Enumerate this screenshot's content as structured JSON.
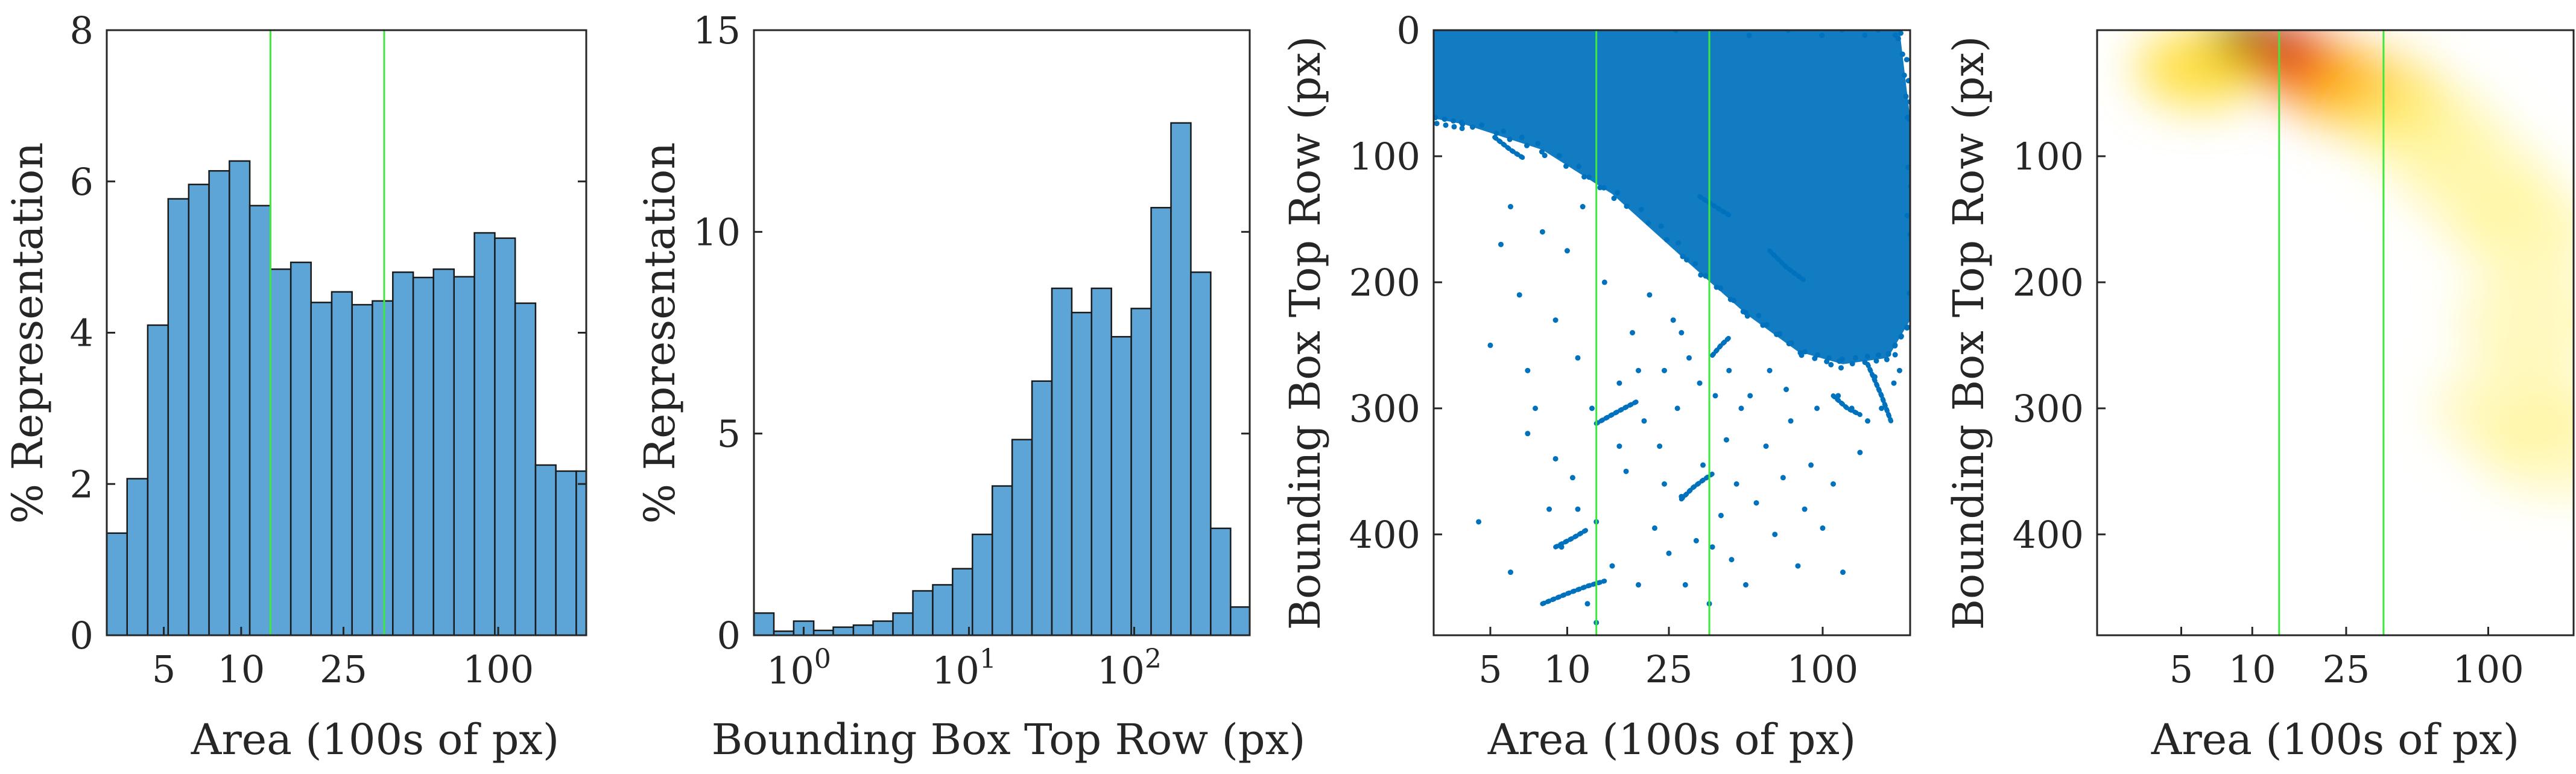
{
  "colors": {
    "bar_fill": "#5da5d7",
    "bar_stroke": "#1a1a1a",
    "scatter": "#0072bd",
    "marker_line": "#3ee83e",
    "axis": "#262626"
  },
  "chart_data": [
    {
      "id": "area-hist",
      "type": "bar",
      "title": "",
      "xlabel": "Area (100s of px)",
      "ylabel": "% Representation",
      "xscale": "log",
      "xlim": [
        3,
        220
      ],
      "ylim": [
        0,
        8
      ],
      "xticks": [
        5,
        10,
        25,
        100
      ],
      "xtick_labels": [
        "5",
        "10",
        "25",
        "100"
      ],
      "yticks": [
        0,
        2,
        4,
        6,
        8
      ],
      "ytick_labels": [
        "0",
        "2",
        "4",
        "6",
        "8"
      ],
      "vlines": [
        13,
        36
      ],
      "bin_edges": [
        3.0,
        3.6,
        4.33,
        5.2,
        6.25,
        7.5,
        9.0,
        10.8,
        13.0,
        15.6,
        18.7,
        22.5,
        27.0,
        32.4,
        38.9,
        46.7,
        56.0,
        67.3,
        80.8,
        97.0,
        116.4,
        139.7,
        167.6,
        201.2,
        220.0
      ],
      "values": [
        1.35,
        2.07,
        4.1,
        5.77,
        5.96,
        6.14,
        6.27,
        5.68,
        4.84,
        4.93,
        4.4,
        4.54,
        4.37,
        4.42,
        4.8,
        4.73,
        4.84,
        4.74,
        5.32,
        5.25,
        4.39,
        2.25,
        2.17,
        2.17
      ]
    },
    {
      "id": "toprow-hist",
      "type": "bar",
      "title": "",
      "xlabel": "Bounding Box Top Row (px)",
      "ylabel": "% Representation",
      "xscale": "log",
      "xlim": [
        0.5,
        500
      ],
      "ylim": [
        0,
        15
      ],
      "xticks": [
        1,
        10,
        100
      ],
      "xtick_labels": [
        "10^0",
        "10^1",
        "10^2"
      ],
      "yticks": [
        0,
        5,
        10,
        15
      ],
      "ytick_labels": [
        "0",
        "5",
        "10",
        "15"
      ],
      "bin_edges": [
        0.5,
        0.66,
        0.87,
        1.15,
        1.51,
        2.0,
        2.63,
        3.47,
        4.58,
        6.04,
        7.96,
        10.5,
        13.85,
        18.26,
        24.08,
        31.76,
        41.9,
        55.2,
        72.8,
        96.0,
        126.6,
        167.0,
        220.3,
        290.5,
        383.2,
        500.0
      ],
      "values": [
        0.55,
        0.1,
        0.35,
        0.12,
        0.2,
        0.25,
        0.35,
        0.55,
        1.1,
        1.25,
        1.65,
        2.5,
        3.7,
        4.85,
        6.3,
        8.6,
        8.0,
        8.6,
        7.4,
        8.1,
        10.6,
        12.7,
        9.0,
        2.65,
        0.7
      ]
    },
    {
      "id": "scatter",
      "type": "scatter",
      "title": "",
      "xlabel": "Area (100s of px)",
      "ylabel": "Bounding Box Top Row (px)",
      "xscale": "log",
      "xlim": [
        3,
        220
      ],
      "ylim": [
        0,
        480
      ],
      "y_reversed": true,
      "xticks": [
        5,
        10,
        25,
        100
      ],
      "xtick_labels": [
        "5",
        "10",
        "25",
        "100"
      ],
      "yticks": [
        0,
        100,
        200,
        300,
        400
      ],
      "ytick_labels": [
        "0",
        "100",
        "200",
        "300",
        "400"
      ],
      "vlines": [
        13,
        36
      ],
      "dense_band": [
        [
          3,
          0
        ],
        [
          200,
          0
        ],
        [
          220,
          70
        ],
        [
          220,
          230
        ],
        [
          180,
          260
        ],
        [
          120,
          265
        ],
        [
          80,
          255
        ],
        [
          50,
          225
        ],
        [
          30,
          185
        ],
        [
          15,
          130
        ],
        [
          8,
          95
        ],
        [
          4,
          75
        ],
        [
          3,
          70
        ]
      ],
      "points": [
        [
          4.5,
          390
        ],
        [
          5,
          250
        ],
        [
          5.5,
          170
        ],
        [
          6,
          140
        ],
        [
          6.5,
          210
        ],
        [
          7,
          320
        ],
        [
          7.5,
          300
        ],
        [
          8,
          160
        ],
        [
          8.5,
          380
        ],
        [
          9,
          230
        ],
        [
          9.5,
          410
        ],
        [
          10,
          175
        ],
        [
          10.5,
          355
        ],
        [
          11,
          260
        ],
        [
          11.5,
          140
        ],
        [
          12,
          455
        ],
        [
          12.5,
          300
        ],
        [
          13,
          390
        ],
        [
          14,
          200
        ],
        [
          15,
          425
        ],
        [
          16,
          280
        ],
        [
          17,
          350
        ],
        [
          18,
          240
        ],
        [
          19,
          440
        ],
        [
          20,
          310
        ],
        [
          21,
          210
        ],
        [
          22,
          395
        ],
        [
          23,
          330
        ],
        [
          24,
          270
        ],
        [
          25,
          415
        ],
        [
          26,
          230
        ],
        [
          27,
          300
        ],
        [
          28,
          370
        ],
        [
          29,
          440
        ],
        [
          30,
          260
        ],
        [
          32,
          405
        ],
        [
          34,
          345
        ],
        [
          36,
          455
        ],
        [
          38,
          290
        ],
        [
          40,
          385
        ],
        [
          42,
          325
        ],
        [
          44,
          420
        ],
        [
          46,
          360
        ],
        [
          48,
          300
        ],
        [
          50,
          440
        ],
        [
          55,
          375
        ],
        [
          60,
          330
        ],
        [
          65,
          400
        ],
        [
          70,
          355
        ],
        [
          75,
          310
        ],
        [
          80,
          425
        ],
        [
          85,
          380
        ],
        [
          90,
          345
        ],
        [
          100,
          395
        ],
        [
          110,
          360
        ],
        [
          120,
          430
        ],
        [
          130,
          300
        ],
        [
          140,
          335
        ],
        [
          150,
          310
        ],
        [
          170,
          300
        ],
        [
          190,
          280
        ],
        [
          200,
          270
        ],
        [
          6,
          430
        ],
        [
          7,
          270
        ],
        [
          9,
          340
        ],
        [
          11,
          380
        ],
        [
          13,
          470
        ],
        [
          16,
          330
        ],
        [
          19,
          270
        ],
        [
          24,
          360
        ],
        [
          28,
          240
        ],
        [
          33,
          280
        ],
        [
          37,
          410
        ],
        [
          43,
          270
        ],
        [
          52,
          290
        ],
        [
          62,
          270
        ],
        [
          72,
          285
        ],
        [
          95,
          300
        ],
        [
          115,
          290
        ],
        [
          160,
          275
        ]
      ],
      "curves": [
        [
          [
            8,
            455
          ],
          [
            10,
            447
          ],
          [
            12,
            441
          ],
          [
            14,
            437
          ]
        ],
        [
          [
            13,
            312
          ],
          [
            15,
            305
          ],
          [
            17,
            299
          ],
          [
            19,
            294
          ]
        ],
        [
          [
            28,
            372
          ],
          [
            31,
            363
          ],
          [
            34,
            357
          ],
          [
            37,
            352
          ]
        ],
        [
          [
            37,
            258
          ],
          [
            40,
            250
          ],
          [
            43,
            244
          ]
        ],
        [
          [
            9,
            410
          ],
          [
            10.5,
            403
          ],
          [
            12,
            396
          ]
        ],
        [
          [
            5.2,
            85
          ],
          [
            6,
            95
          ],
          [
            6.8,
            102
          ]
        ],
        [
          [
            110,
            290
          ],
          [
            125,
            300
          ],
          [
            140,
            305
          ]
        ],
        [
          [
            150,
            265
          ],
          [
            170,
            290
          ],
          [
            185,
            310
          ]
        ],
        [
          [
            33,
            132
          ],
          [
            38,
            140
          ],
          [
            44,
            148
          ]
        ],
        [
          [
            62,
            175
          ],
          [
            72,
            188
          ],
          [
            84,
            198
          ]
        ]
      ]
    },
    {
      "id": "density",
      "type": "heatmap",
      "title": "",
      "xlabel": "Area (100s of px)",
      "ylabel": "Bounding Box Top Row (px)",
      "xscale": "log",
      "xlim": [
        2.2,
        230
      ],
      "ylim": [
        0,
        480
      ],
      "y_reversed": true,
      "xticks": [
        5,
        10,
        25,
        100
      ],
      "xtick_labels": [
        "5",
        "10",
        "25",
        "100"
      ],
      "yticks": [
        100,
        200,
        300,
        400
      ],
      "ytick_labels": [
        "100",
        "200",
        "300",
        "400"
      ],
      "vlines": [
        13,
        36
      ],
      "blobs": [
        {
          "x": 9.5,
          "y": 8,
          "density": 1.0
        },
        {
          "x": 14,
          "y": 20,
          "density": 0.85
        },
        {
          "x": 22,
          "y": 40,
          "density": 0.6
        },
        {
          "x": 35,
          "y": 55,
          "density": 0.4
        },
        {
          "x": 55,
          "y": 80,
          "density": 0.3
        },
        {
          "x": 90,
          "y": 120,
          "density": 0.28
        },
        {
          "x": 140,
          "y": 160,
          "density": 0.3
        },
        {
          "x": 160,
          "y": 230,
          "density": 0.15
        },
        {
          "x": 130,
          "y": 300,
          "density": 0.12
        },
        {
          "x": 200,
          "y": 330,
          "density": 0.08
        },
        {
          "x": 6,
          "y": 30,
          "density": 0.5
        }
      ]
    }
  ]
}
